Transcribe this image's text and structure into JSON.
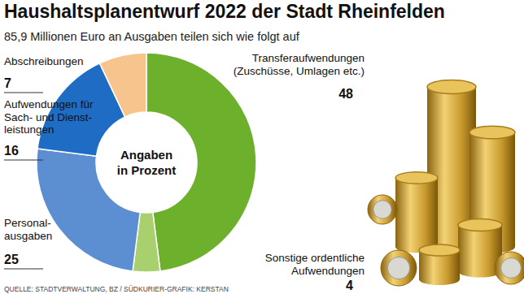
{
  "chart_data": {
    "type": "pie",
    "title": "Haushaltsplanentwurf 2022 der Stadt Rheinfelden",
    "subtitle": "85,9 Millionen Euro an Ausgaben teilen sich wie folgt auf",
    "categories": [
      "Transferaufwendungen\n(Zuschüsse, Umlagen etc.)",
      "Sonstige ordentliche\nAufwendungen",
      "Personal-\nausgaben",
      "Aufwendungen für\nSach- und Dienst-\nleistungen",
      "Abschreibungen"
    ],
    "values": [
      48,
      4,
      25,
      16,
      7
    ],
    "colors": [
      "#6cb02c",
      "#a9d06f",
      "#5b8fd2",
      "#1e6cc4",
      "#f6c48c"
    ],
    "data_labels": true,
    "annotations": [
      "Angaben\nin Prozent",
      "QUELLE: STADTVERWALTUNG, BZ / SÜDKURIER-GRAFIK: KERSTAN"
    ]
  }
}
